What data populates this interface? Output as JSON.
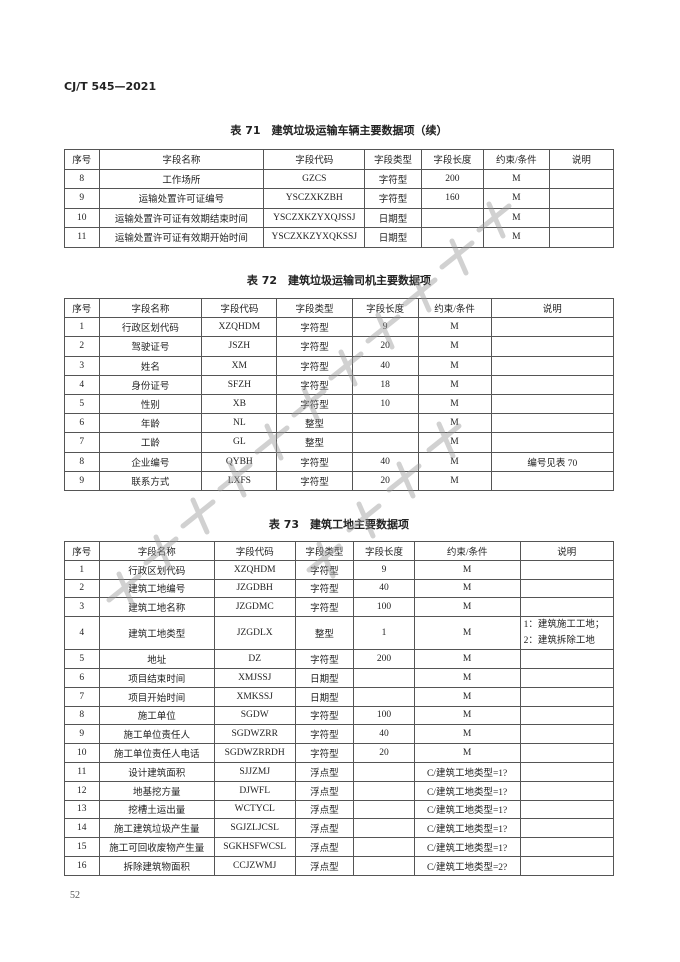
{
  "header": {
    "standard_no": "CJ/T 545—2021"
  },
  "watermark": {
    "line1": "住房城乡建设部信息公开",
    "line2": "浏览专用",
    "color": "#9a9a9a"
  },
  "columns_common": [
    "序号",
    "字段名称",
    "字段代码",
    "字段类型",
    "字段长度",
    "约束/条件",
    "说明"
  ],
  "table71": {
    "title": "表 71　建筑垃圾运输车辆主要数据项（续）",
    "rows": [
      [
        "8",
        "工作场所",
        "GZCS",
        "字符型",
        "200",
        "M",
        ""
      ],
      [
        "9",
        "运输处置许可证编号",
        "YSCZXKZBH",
        "字符型",
        "160",
        "M",
        ""
      ],
      [
        "10",
        "运输处置许可证有效期结束时间",
        "YSCZXKZYXQJSSJ",
        "日期型",
        "",
        "M",
        ""
      ],
      [
        "11",
        "运输处置许可证有效期开始时间",
        "YSCZXKZYXQKSSJ",
        "日期型",
        "",
        "M",
        ""
      ]
    ]
  },
  "table72": {
    "title": "表 72　建筑垃圾运输司机主要数据项",
    "rows": [
      [
        "1",
        "行政区划代码",
        "XZQHDM",
        "字符型",
        "9",
        "M",
        ""
      ],
      [
        "2",
        "驾驶证号",
        "JSZH",
        "字符型",
        "20",
        "M",
        ""
      ],
      [
        "3",
        "姓名",
        "XM",
        "字符型",
        "40",
        "M",
        ""
      ],
      [
        "4",
        "身份证号",
        "SFZH",
        "字符型",
        "18",
        "M",
        ""
      ],
      [
        "5",
        "性别",
        "XB",
        "字符型",
        "10",
        "M",
        ""
      ],
      [
        "6",
        "年龄",
        "NL",
        "整型",
        "",
        "M",
        ""
      ],
      [
        "7",
        "工龄",
        "GL",
        "整型",
        "",
        "M",
        ""
      ],
      [
        "8",
        "企业编号",
        "QYBH",
        "字符型",
        "40",
        "M",
        "编号见表 70"
      ],
      [
        "9",
        "联系方式",
        "LXFS",
        "字符型",
        "20",
        "M",
        ""
      ]
    ]
  },
  "table73": {
    "title": "表 73　建筑工地主要数据项",
    "rows": [
      [
        "1",
        "行政区划代码",
        "XZQHDM",
        "字符型",
        "9",
        "M",
        ""
      ],
      [
        "2",
        "建筑工地编号",
        "JZGDBH",
        "字符型",
        "40",
        "M",
        ""
      ],
      [
        "3",
        "建筑工地名称",
        "JZGDMC",
        "字符型",
        "100",
        "M",
        ""
      ],
      [
        "4",
        "建筑工地类型",
        "JZGDLX",
        "整型",
        "1",
        "M",
        "1：建筑施工工地；2：建筑拆除工地"
      ],
      [
        "5",
        "地址",
        "DZ",
        "字符型",
        "200",
        "M",
        ""
      ],
      [
        "6",
        "项目结束时间",
        "XMJSSJ",
        "日期型",
        "",
        "M",
        ""
      ],
      [
        "7",
        "项目开始时间",
        "XMKSSJ",
        "日期型",
        "",
        "M",
        ""
      ],
      [
        "8",
        "施工单位",
        "SGDW",
        "字符型",
        "100",
        "M",
        ""
      ],
      [
        "9",
        "施工单位责任人",
        "SGDWZRR",
        "字符型",
        "40",
        "M",
        ""
      ],
      [
        "10",
        "施工单位责任人电话",
        "SGDWZRRDH",
        "字符型",
        "20",
        "M",
        ""
      ],
      [
        "11",
        "设计建筑面积",
        "SJJZMJ",
        "浮点型",
        "",
        "C/建筑工地类型=1?",
        ""
      ],
      [
        "12",
        "地基挖方量",
        "DJWFL",
        "浮点型",
        "",
        "C/建筑工地类型=1?",
        ""
      ],
      [
        "13",
        "挖槽土运出量",
        "WCTYCL",
        "浮点型",
        "",
        "C/建筑工地类型=1?",
        ""
      ],
      [
        "14",
        "施工建筑垃圾产生量",
        "SGJZLJCSL",
        "浮点型",
        "",
        "C/建筑工地类型=1?",
        ""
      ],
      [
        "15",
        "施工可回收废物产生量",
        "SGKHSFWCSL",
        "浮点型",
        "",
        "C/建筑工地类型=1?",
        ""
      ],
      [
        "16",
        "拆除建筑物面积",
        "CCJZWMJ",
        "浮点型",
        "",
        "C/建筑工地类型=2?",
        ""
      ]
    ]
  },
  "footer": {
    "page_number": "52"
  }
}
